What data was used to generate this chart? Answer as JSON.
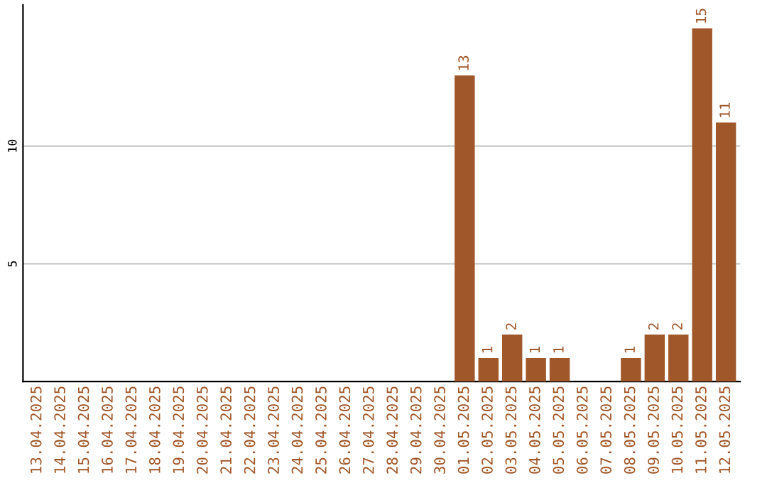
{
  "chart_data": {
    "type": "bar",
    "categories": [
      "13.04.2025",
      "14.04.2025",
      "15.04.2025",
      "16.04.2025",
      "17.04.2025",
      "18.04.2025",
      "19.04.2025",
      "20.04.2025",
      "21.04.2025",
      "22.04.2025",
      "23.04.2025",
      "24.04.2025",
      "25.04.2025",
      "26.04.2025",
      "27.04.2025",
      "28.04.2025",
      "29.04.2025",
      "30.04.2025",
      "01.05.2025",
      "02.05.2025",
      "03.05.2025",
      "04.05.2025",
      "05.05.2025",
      "06.05.2025",
      "07.05.2025",
      "08.05.2025",
      "09.05.2025",
      "10.05.2025",
      "11.05.2025",
      "12.05.2025"
    ],
    "values": [
      0,
      0,
      0,
      0,
      0,
      0,
      0,
      0,
      0,
      0,
      0,
      0,
      0,
      0,
      0,
      0,
      0,
      0,
      13,
      1,
      2,
      1,
      1,
      0,
      0,
      1,
      2,
      2,
      15,
      11
    ],
    "value_labels": [
      null,
      null,
      null,
      null,
      null,
      null,
      null,
      null,
      null,
      null,
      null,
      null,
      null,
      null,
      null,
      null,
      null,
      null,
      "13",
      "1",
      "2",
      "1",
      "1",
      null,
      null,
      "1",
      "2",
      "2",
      "15",
      "11"
    ],
    "color": "#a0572a",
    "ylim": [
      0,
      16
    ],
    "yticks": [
      5,
      10
    ],
    "grid": "y"
  }
}
